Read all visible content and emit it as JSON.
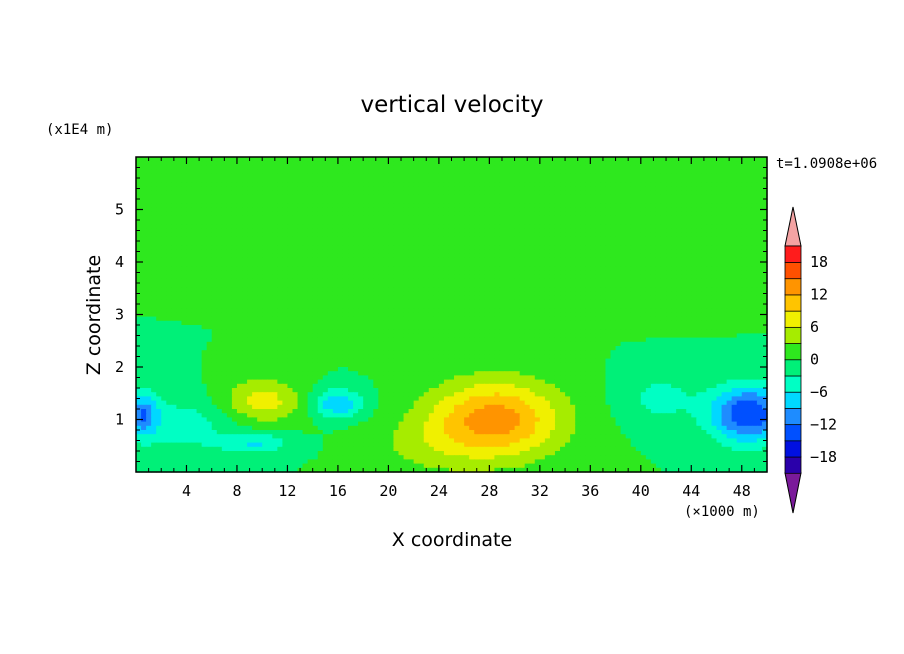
{
  "chart_data": {
    "type": "heatmap",
    "title": "vertical velocity",
    "xlabel": "X coordinate",
    "ylabel": "Z coordinate",
    "x_unit": "(×1000 m)",
    "y_unit": "(x1E4 m)",
    "time_label": "t=1.0908e+06",
    "xlim": [
      0,
      50
    ],
    "ylim": [
      0,
      6
    ],
    "x_ticks": [
      4,
      8,
      12,
      16,
      20,
      24,
      28,
      32,
      36,
      40,
      44,
      48
    ],
    "y_ticks": [
      1,
      2,
      3,
      4,
      5
    ],
    "colorbar": {
      "levels": [
        -21,
        -18,
        -15,
        -12,
        -9,
        -6,
        -3,
        0,
        3,
        6,
        9,
        12,
        15,
        18,
        21
      ],
      "tick_labels": [
        "18",
        "12",
        "6",
        "0",
        "−6",
        "−12",
        "−18"
      ],
      "tick_values": [
        18,
        12,
        6,
        0,
        -6,
        -12,
        -18
      ],
      "colors": [
        "#7a1a9a",
        "#2a00aa",
        "#0010e0",
        "#0050ff",
        "#1e8cff",
        "#00d8ff",
        "#00ffc4",
        "#00f078",
        "#2ee81e",
        "#a6ec00",
        "#f0f000",
        "#ffc400",
        "#ff9400",
        "#ff5000",
        "#ff1c1c",
        "#f4a3a3"
      ],
      "extend": "both"
    },
    "features": [
      {
        "x": 28.5,
        "z": 1.0,
        "sx": 5.2,
        "sz": 0.75,
        "w": 13.5
      },
      {
        "x": 10.0,
        "z": 1.35,
        "sx": 3.2,
        "sz": 0.42,
        "w": 7.5
      },
      {
        "x": 23.0,
        "z": 0.5,
        "sx": 4.5,
        "sz": 0.6,
        "w": 3.0
      },
      {
        "x": 48.5,
        "z": 1.1,
        "sx": 3.0,
        "sz": 0.55,
        "w": -15.0
      },
      {
        "x": 0.5,
        "z": 1.1,
        "sx": 1.2,
        "sz": 0.4,
        "w": -10.0
      },
      {
        "x": 16.0,
        "z": 1.3,
        "sx": 2.0,
        "sz": 0.28,
        "w": -9.0
      },
      {
        "x": 9.5,
        "z": 0.55,
        "sx": 2.8,
        "sz": 0.2,
        "w": -6.0
      },
      {
        "x": 3.5,
        "z": 0.9,
        "sx": 4.5,
        "sz": 0.55,
        "w": -4.5
      },
      {
        "x": 41.5,
        "z": 1.4,
        "sx": 3.0,
        "sz": 0.5,
        "w": -4.0
      },
      {
        "x": 10.0,
        "z": 4.1,
        "sx": 7.0,
        "sz": 0.25,
        "w": 2.3
      },
      {
        "x": 33.0,
        "z": 3.2,
        "sx": 9.0,
        "sz": 0.35,
        "w": 2.0
      },
      {
        "x": 25.0,
        "z": 5.7,
        "sx": 15.0,
        "sz": 0.3,
        "w": 2.3
      },
      {
        "x": 44.0,
        "z": 4.05,
        "sx": 5.0,
        "sz": 0.22,
        "w": 2.0
      }
    ]
  }
}
